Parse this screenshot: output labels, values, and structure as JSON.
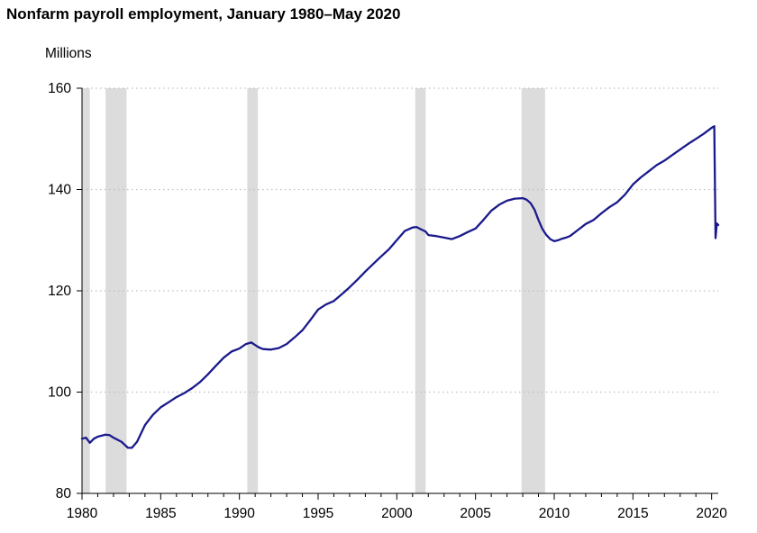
{
  "chart_data": {
    "type": "line",
    "title": "Nonfarm payroll employment, January 1980–May 2020",
    "ylabel": "Millions",
    "xlabel": "",
    "xlim": [
      1980.0,
      2020.42
    ],
    "ylim": [
      80,
      160
    ],
    "x_ticks": [
      1980,
      1985,
      1990,
      1995,
      2000,
      2005,
      2010,
      2015,
      2020
    ],
    "y_ticks": [
      80,
      100,
      120,
      140,
      160
    ],
    "grid": "horizontal dotted",
    "legend": "none",
    "colors": {
      "line": "#1a1a8c",
      "recession": "#dcdcdc",
      "grid": "#bfbfbf",
      "axis": "#000000"
    },
    "recessions": [
      [
        1980.0,
        1980.5
      ],
      [
        1981.5,
        1982.83
      ],
      [
        1990.5,
        1991.17
      ],
      [
        2001.17,
        2001.83
      ],
      [
        2007.92,
        2009.42
      ]
    ],
    "series": [
      {
        "x": [
          1980.0,
          1980.25,
          1980.5,
          1980.75,
          1981.0,
          1981.5,
          1981.75,
          1982.0,
          1982.5,
          1982.92,
          1983.17,
          1983.5,
          1984.0,
          1984.5,
          1985.0,
          1985.5,
          1986.0,
          1986.5,
          1987.0,
          1987.5,
          1988.0,
          1988.5,
          1989.0,
          1989.5,
          1990.0,
          1990.42,
          1990.75,
          1991.0,
          1991.25,
          1991.5,
          1992.0,
          1992.5,
          1993.0,
          1993.5,
          1994.0,
          1994.5,
          1995.0,
          1995.5,
          1996.0,
          1996.5,
          1997.0,
          1997.5,
          1998.0,
          1998.5,
          1999.0,
          1999.5,
          2000.0,
          2000.5,
          2001.0,
          2001.25,
          2001.5,
          2001.83,
          2002.0,
          2002.5,
          2003.0,
          2003.5,
          2004.0,
          2004.5,
          2005.0,
          2005.5,
          2006.0,
          2006.5,
          2007.0,
          2007.5,
          2008.0,
          2008.25,
          2008.5,
          2008.75,
          2009.0,
          2009.25,
          2009.5,
          2009.75,
          2010.0,
          2010.25,
          2010.5,
          2010.75,
          2011.0,
          2011.5,
          2012.0,
          2012.5,
          2013.0,
          2013.5,
          2014.0,
          2014.5,
          2015.0,
          2015.5,
          2016.0,
          2016.5,
          2017.0,
          2017.5,
          2018.0,
          2018.5,
          2019.0,
          2019.5,
          2020.0,
          2020.17,
          2020.25,
          2020.33,
          2020.42
        ],
        "y": [
          90.8,
          91.0,
          90.0,
          90.8,
          91.2,
          91.6,
          91.5,
          91.0,
          90.2,
          89.0,
          89.0,
          90.2,
          93.5,
          95.5,
          97.0,
          98.0,
          99.0,
          99.8,
          100.8,
          102.0,
          103.5,
          105.2,
          106.8,
          108.0,
          108.6,
          109.5,
          109.8,
          109.3,
          108.8,
          108.5,
          108.4,
          108.7,
          109.5,
          110.8,
          112.2,
          114.2,
          116.3,
          117.3,
          118.0,
          119.3,
          120.7,
          122.2,
          123.8,
          125.3,
          126.8,
          128.2,
          130.0,
          131.8,
          132.5,
          132.6,
          132.2,
          131.7,
          131.0,
          130.8,
          130.5,
          130.2,
          130.8,
          131.6,
          132.3,
          134.0,
          135.8,
          137.0,
          137.8,
          138.2,
          138.3,
          138.0,
          137.3,
          136.0,
          134.0,
          132.2,
          131.0,
          130.2,
          129.8,
          130.0,
          130.3,
          130.5,
          130.8,
          132.0,
          133.2,
          134.0,
          135.3,
          136.5,
          137.5,
          139.0,
          141.0,
          142.4,
          143.6,
          144.8,
          145.7,
          146.8,
          147.9,
          149.0,
          150.0,
          151.0,
          152.2,
          152.5,
          130.4,
          133.3,
          133.0
        ]
      }
    ]
  }
}
